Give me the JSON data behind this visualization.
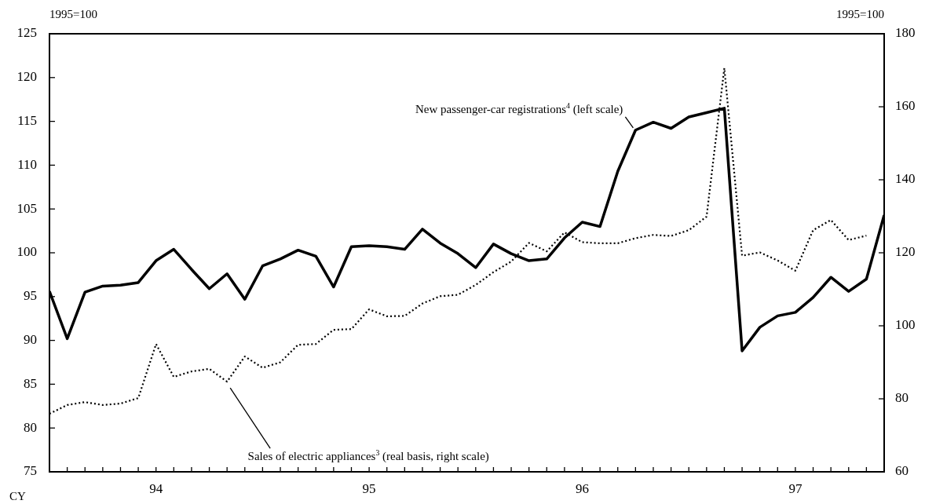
{
  "chart_data": {
    "type": "line",
    "xlabel": "CY",
    "ylabel": "1995=100",
    "y2label": "1995=100",
    "x": [
      "1994-01",
      "1994-02",
      "1994-03",
      "1994-04",
      "1994-05",
      "1994-06",
      "1994-07",
      "1994-08",
      "1994-09",
      "1994-10",
      "1994-11",
      "1994-12",
      "1995-01",
      "1995-02",
      "1995-03",
      "1995-04",
      "1995-05",
      "1995-06",
      "1995-07",
      "1995-08",
      "1995-09",
      "1995-10",
      "1995-11",
      "1995-12",
      "1996-01",
      "1996-02",
      "1996-03",
      "1996-04",
      "1996-05",
      "1996-06",
      "1996-07",
      "1996-08",
      "1996-09",
      "1996-10",
      "1996-11",
      "1996-12",
      "1997-01",
      "1997-02",
      "1997-03",
      "1997-04",
      "1997-05",
      "1997-06",
      "1997-07",
      "1997-08",
      "1997-09",
      "1997-10",
      "1997-11",
      "1997-12"
    ],
    "series": [
      {
        "name": "New passenger-car registrations$^{4}$ (left scale)",
        "color": "#000000",
        "line_style": "solid",
        "values": [
          95.6,
          90.2,
          95.5,
          96.2,
          96.3,
          96.6,
          99.1,
          100.4,
          98.1,
          95.9,
          97.6,
          94.7,
          98.5,
          99.3,
          100.3,
          99.6,
          96.1,
          100.7,
          100.8,
          100.7,
          100.4,
          102.7,
          101.1,
          99.9,
          98.3,
          101.0,
          99.9,
          99.1,
          99.3,
          101.7,
          103.5,
          103.0,
          109.3,
          114.0,
          114.9,
          114.2,
          115.5,
          116.0,
          116.5,
          88.8,
          91.5,
          92.8,
          93.2,
          94.9,
          97.2,
          95.6,
          97.0,
          104.3
        ]
      },
      {
        "name": "Sales of electric appliances$^{3}$ (real basis, right scale)",
        "color": "#000000",
        "line_style": "dotted",
        "axis": "y2",
        "values": [
          75.9,
          78.3,
          79.1,
          78.3,
          78.7,
          80.2,
          95.0,
          86.0,
          87.5,
          88.2,
          84.7,
          91.6,
          88.5,
          90.0,
          94.8,
          95.0,
          98.9,
          99.1,
          104.5,
          102.6,
          102.7,
          106.1,
          108.1,
          108.5,
          111.2,
          114.7,
          117.6,
          122.7,
          120.4,
          125.6,
          122.9,
          122.6,
          122.6,
          124.0,
          124.9,
          124.6,
          126.2,
          129.9,
          170.6,
          119.2,
          120.1,
          117.9,
          115.1,
          126.2,
          129.0,
          123.5,
          124.7,
          null
        ]
      }
    ],
    "xlim": [
      "1994-01",
      "1997-12"
    ],
    "xticks": [
      {
        "value": "1994-01",
        "label": null
      },
      {
        "value": "1994-02",
        "label": null
      },
      {
        "value": "1994-03",
        "label": null
      },
      {
        "value": "1994-04",
        "label": null
      },
      {
        "value": "1994-05",
        "label": null
      },
      {
        "value": "1994-06",
        "label": null
      },
      {
        "value": "1994-07",
        "label": "94"
      },
      {
        "value": "1994-08",
        "label": null
      },
      {
        "value": "1994-09",
        "label": null
      },
      {
        "value": "1994-10",
        "label": null
      },
      {
        "value": "1994-11",
        "label": null
      },
      {
        "value": "1994-12",
        "label": null
      },
      {
        "value": "1995-01",
        "label": null
      },
      {
        "value": "1995-02",
        "label": null
      },
      {
        "value": "1995-03",
        "label": null
      },
      {
        "value": "1995-04",
        "label": null
      },
      {
        "value": "1995-05",
        "label": null
      },
      {
        "value": "1995-06",
        "label": null
      },
      {
        "value": "1995-07",
        "label": "95"
      },
      {
        "value": "1995-08",
        "label": null
      },
      {
        "value": "1995-09",
        "label": null
      },
      {
        "value": "1995-10",
        "label": null
      },
      {
        "value": "1995-11",
        "label": null
      },
      {
        "value": "1995-12",
        "label": null
      },
      {
        "value": "1996-01",
        "label": null
      },
      {
        "value": "1996-02",
        "label": null
      },
      {
        "value": "1996-03",
        "label": null
      },
      {
        "value": "1996-04",
        "label": null
      },
      {
        "value": "1996-05",
        "label": null
      },
      {
        "value": "1996-06",
        "label": null
      },
      {
        "value": "1996-07",
        "label": "96"
      },
      {
        "value": "1996-08",
        "label": null
      },
      {
        "value": "1996-09",
        "label": null
      },
      {
        "value": "1996-10",
        "label": null
      },
      {
        "value": "1996-11",
        "label": null
      },
      {
        "value": "1996-12",
        "label": null
      },
      {
        "value": "1997-01",
        "label": null
      },
      {
        "value": "1997-02",
        "label": null
      },
      {
        "value": "1997-03",
        "label": null
      },
      {
        "value": "1997-04",
        "label": null
      },
      {
        "value": "1997-05",
        "label": null
      },
      {
        "value": "1997-06",
        "label": null
      },
      {
        "value": "1997-07",
        "label": "97"
      },
      {
        "value": "1997-08",
        "label": null
      },
      {
        "value": "1997-09",
        "label": null
      },
      {
        "value": "1997-10",
        "label": null
      },
      {
        "value": "1997-11",
        "label": null
      },
      {
        "value": "1997-12",
        "label": null
      }
    ],
    "ylim": [
      75,
      125
    ],
    "yticks": [
      75,
      80,
      85,
      90,
      95,
      100,
      105,
      110,
      115,
      120,
      125
    ],
    "y2lim": [
      60,
      180
    ],
    "y2ticks": [
      60,
      80,
      100,
      120,
      140,
      160,
      180
    ]
  }
}
